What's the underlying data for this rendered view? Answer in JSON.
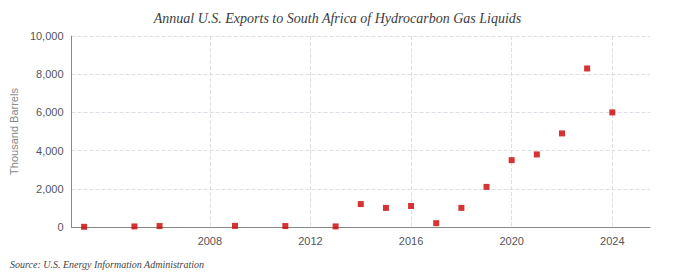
{
  "chart_data": {
    "type": "scatter",
    "title": "Annual U.S. Exports to South Africa of Hydrocarbon Gas Liquids",
    "ylabel": "Thousand Barrels",
    "annotation": "Source: U.S. Energy Information Administration",
    "x": [
      2003,
      2005,
      2006,
      2009,
      2011,
      2013,
      2014,
      2015,
      2016,
      2017,
      2018,
      2019,
      2020,
      2021,
      2022,
      2023,
      2024
    ],
    "values": [
      10,
      30,
      50,
      60,
      50,
      30,
      1200,
      1000,
      1100,
      200,
      1000,
      2100,
      3500,
      3800,
      4900,
      8300,
      6000
    ],
    "color": "#cc0000",
    "marker": "square",
    "xlim": [
      2002.5,
      2025.5
    ],
    "xticks": [
      2008,
      2012,
      2016,
      2020,
      2024
    ],
    "ylim": [
      0,
      10000
    ],
    "yticks": [
      0,
      {
        "value": 2000,
        "label": "2,000"
      },
      {
        "value": 4000,
        "label": "4,000"
      },
      {
        "value": 6000,
        "label": "6,000"
      },
      {
        "value": 8000,
        "label": "8,000"
      },
      {
        "value": 10000,
        "label": "10,000"
      }
    ],
    "grid": true
  }
}
